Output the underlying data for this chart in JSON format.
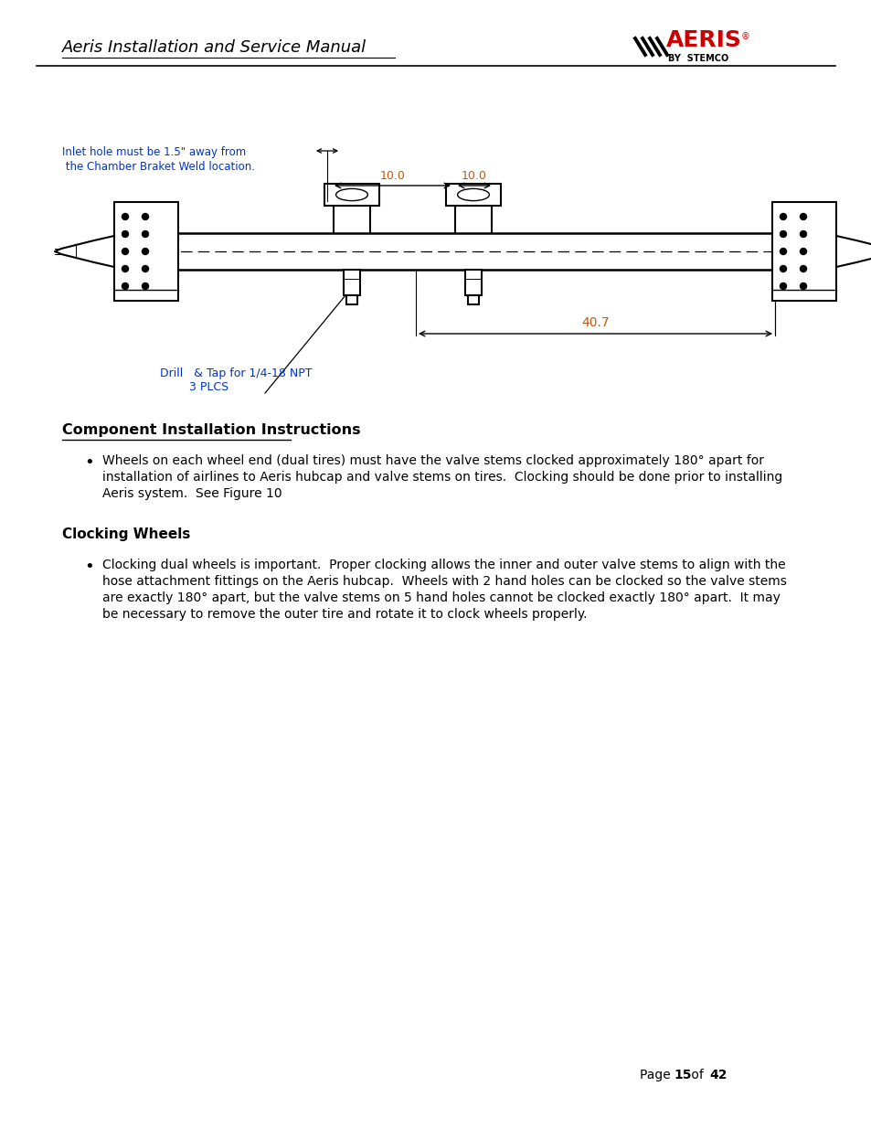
{
  "page_title": "Aeris Installation and Service Manual",
  "logo_text": "AERIS",
  "logo_subtext": "BY  STEMCO",
  "section1_title": "Component Installation Instructions",
  "bullet1_lines": [
    "Wheels on each wheel end (dual tires) must have the valve stems clocked approximately 180° apart for",
    "installation of airlines to Aeris hubcap and valve stems on tires.  Clocking should be done prior to installing",
    "Aeris system.  See Figure 10"
  ],
  "section2_title": "Clocking Wheels",
  "bullet2_lines": [
    "Clocking dual wheels is important.  Proper clocking allows the inner and outer valve stems to align with the",
    "hose attachment fittings on the Aeris hubcap.  Wheels with 2 hand holes can be clocked so the valve stems",
    "are exactly 180° apart, but the valve stems on 5 hand holes cannot be clocked exactly 180° apart.  It may",
    "be necessary to remove the outer tire and rotate it to clock wheels properly."
  ],
  "page_num": "15",
  "page_total": "42",
  "annot_drill": "Drill   & Tap for 1/4-18 NPT",
  "annot_3plcs": "3 PLCS",
  "annot_407": "40.7",
  "annot_100a": "10.0",
  "annot_100b": "10.0",
  "annot_inlet_line1": "Inlet hole must be 1.5\" away from",
  "annot_inlet_line2": " the Chamber Braket Weld location.",
  "blue_color": "#0033CC",
  "orange_color": "#CC5500",
  "black_color": "#000000",
  "bg_color": "#ffffff",
  "red_color": "#cc0000"
}
